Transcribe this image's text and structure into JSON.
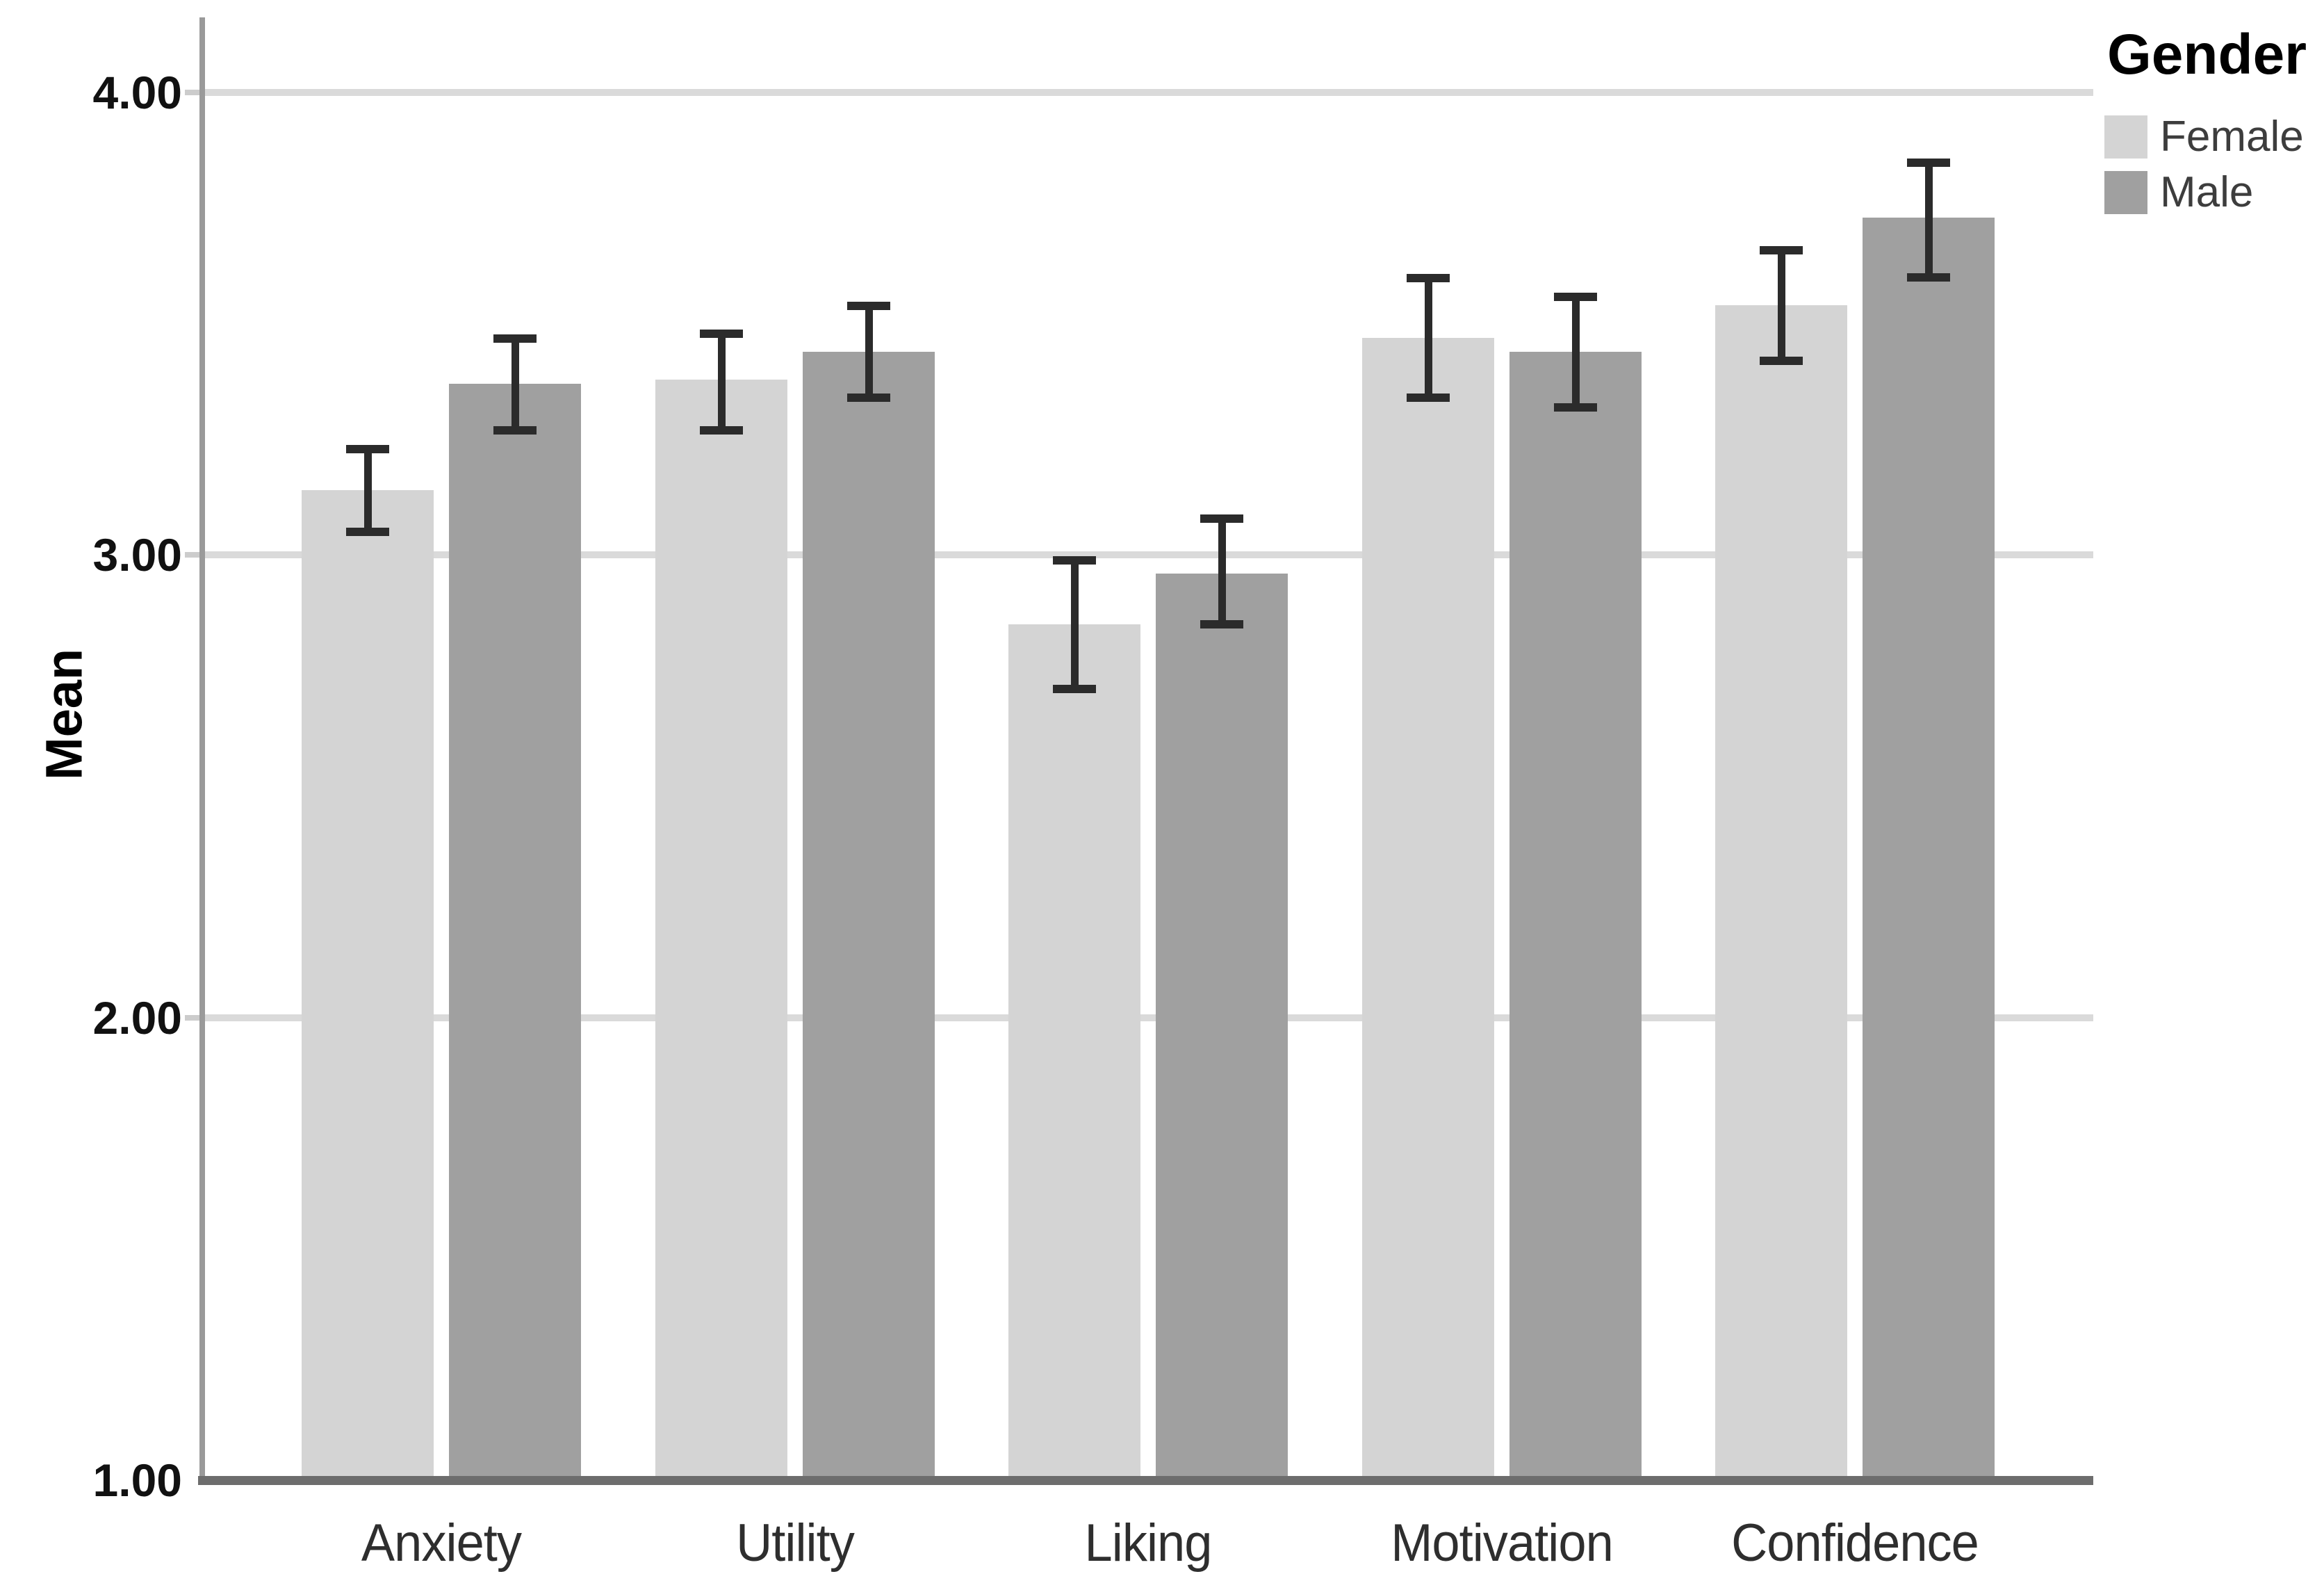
{
  "chart_data": {
    "type": "bar",
    "title": "",
    "xlabel": "",
    "ylabel": "Mean",
    "ylim": [
      1.0,
      4.0
    ],
    "yticks": [
      {
        "value": 4.0,
        "label": "4.00"
      },
      {
        "value": 3.0,
        "label": "3.00"
      },
      {
        "value": 2.0,
        "label": "2.00"
      },
      {
        "value": 1.0,
        "label": "1.00"
      }
    ],
    "grid": "horizontal",
    "gridline_color": "#dadada",
    "error_bars": true,
    "error_bar_color": "#2b2b2b",
    "categories": [
      "Anxiety",
      "Utility",
      "Liking",
      "Motivation",
      "Confidence"
    ],
    "legend": {
      "title": "Gender",
      "position": "top-right",
      "entries": [
        {
          "label": "Female",
          "color": "#d4d4d4"
        },
        {
          "label": "Male",
          "color": "#a0a0a0"
        }
      ]
    },
    "series": [
      {
        "name": "Female",
        "color": "#d4d4d4",
        "values": [
          3.14,
          3.38,
          2.85,
          3.47,
          3.54
        ],
        "error_low": [
          3.05,
          3.27,
          2.71,
          3.34,
          3.42
        ],
        "error_high": [
          3.23,
          3.48,
          2.99,
          3.6,
          3.66
        ]
      },
      {
        "name": "Male",
        "color": "#a0a0a0",
        "values": [
          3.37,
          3.44,
          2.96,
          3.44,
          3.73
        ],
        "error_low": [
          3.27,
          3.34,
          2.85,
          3.32,
          3.6
        ],
        "error_high": [
          3.47,
          3.54,
          3.08,
          3.56,
          3.85
        ]
      }
    ]
  }
}
